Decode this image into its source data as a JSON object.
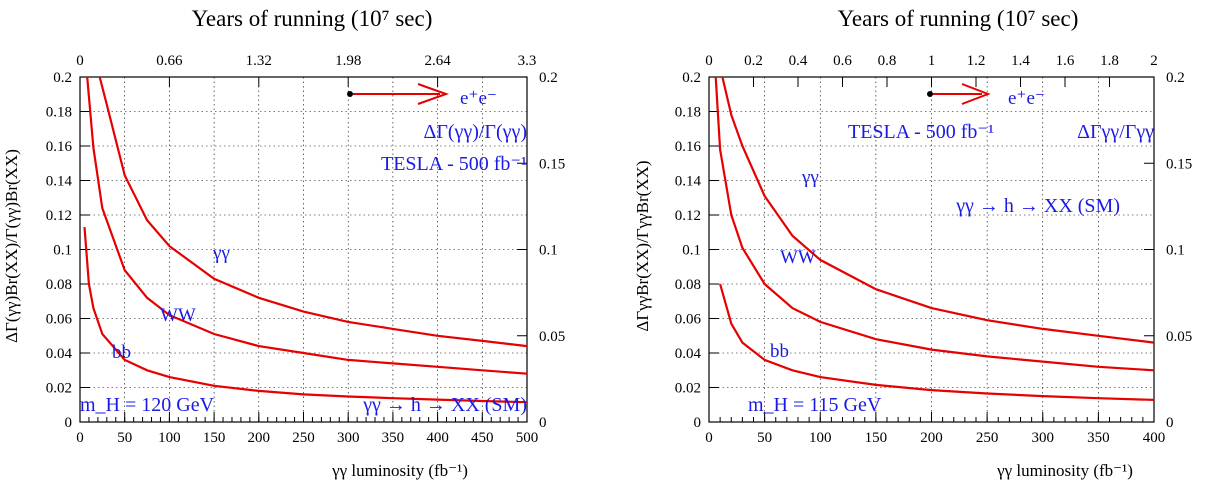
{
  "colors": {
    "curve": "#e60000",
    "annotation": "#1a1ae6",
    "axis": "#000000"
  },
  "chart_data": [
    {
      "type": "line",
      "top_title": "Years of running  (10⁷ sec)",
      "xlabel": "γγ luminosity (fb⁻¹)",
      "ylabel": "ΔΓ(γγ)Br(XX)/Γ(γγ)Br(XX)",
      "xlim": [
        0,
        500
      ],
      "ylim": [
        0,
        0.2
      ],
      "x_ticks": [
        "0",
        "50",
        "100",
        "150",
        "200",
        "250",
        "300",
        "350",
        "400",
        "450",
        "500"
      ],
      "y_ticks": [
        "0",
        "0.02",
        "0.04",
        "0.06",
        "0.08",
        "0.1",
        "0.12",
        "0.14",
        "0.16",
        "0.18",
        "0.2"
      ],
      "top_ticks": [
        "0",
        "0.66",
        "1.32",
        "1.98",
        "2.64",
        "3.3"
      ],
      "right_ticks": [
        "0",
        "0.05",
        "0.1",
        "0.15",
        "0.2"
      ],
      "grid": true,
      "series": [
        {
          "name": "γγ",
          "x": [
            22,
            30,
            50,
            75,
            100,
            150,
            200,
            250,
            300,
            350,
            400,
            450,
            500
          ],
          "y": [
            0.2,
            0.184,
            0.143,
            0.117,
            0.102,
            0.083,
            0.072,
            0.064,
            0.058,
            0.054,
            0.05,
            0.047,
            0.044
          ]
        },
        {
          "name": "WW",
          "x": [
            8,
            15,
            25,
            50,
            75,
            100,
            150,
            200,
            250,
            300,
            350,
            400,
            450,
            500
          ],
          "y": [
            0.2,
            0.159,
            0.124,
            0.088,
            0.072,
            0.062,
            0.051,
            0.044,
            0.04,
            0.036,
            0.034,
            0.032,
            0.03,
            0.028
          ]
        },
        {
          "name": "bb",
          "x": [
            5,
            10,
            15,
            25,
            50,
            75,
            100,
            150,
            200,
            250,
            300,
            350,
            400,
            450,
            500
          ],
          "y": [
            0.113,
            0.08,
            0.066,
            0.051,
            0.036,
            0.03,
            0.026,
            0.021,
            0.018,
            0.016,
            0.0148,
            0.0138,
            0.013,
            0.0122,
            0.0115
          ]
        }
      ],
      "annotations": {
        "ee": "e⁺e⁻",
        "quantity": "ΔΓ(γγ)/Γ(γγ)",
        "tesla": "TESLA - 500 fb⁻¹",
        "mass": "m_H = 120 GeV",
        "process": "γγ → h → XX (SM)",
        "label_gg": "γγ",
        "label_ww": "WW",
        "label_bb": "bb"
      }
    },
    {
      "type": "line",
      "top_title": "Years of running  (10⁷ sec)",
      "xlabel": "γγ luminosity (fb⁻¹)",
      "ylabel": "ΔΓγγBr(XX)/ΓγγBr(XX)",
      "xlim": [
        0,
        400
      ],
      "ylim": [
        0,
        0.2
      ],
      "x_ticks": [
        "0",
        "50",
        "100",
        "150",
        "200",
        "250",
        "300",
        "350",
        "400"
      ],
      "y_ticks": [
        "0",
        "0.02",
        "0.04",
        "0.06",
        "0.08",
        "0.1",
        "0.12",
        "0.14",
        "0.16",
        "0.18",
        "0.2"
      ],
      "top_ticks": [
        "0",
        "0.2",
        "0.4",
        "0.6",
        "0.8",
        "1",
        "1.2",
        "1.4",
        "1.6",
        "1.8",
        "2"
      ],
      "right_ticks": [
        "0",
        "0.05",
        "0.1",
        "0.15",
        "0.2"
      ],
      "grid": true,
      "series": [
        {
          "name": "γγ",
          "x": [
            12,
            20,
            30,
            50,
            75,
            100,
            150,
            200,
            250,
            300,
            350,
            400
          ],
          "y": [
            0.2,
            0.178,
            0.16,
            0.131,
            0.108,
            0.094,
            0.077,
            0.066,
            0.059,
            0.054,
            0.05,
            0.046
          ]
        },
        {
          "name": "WW",
          "x": [
            6,
            10,
            20,
            30,
            50,
            75,
            100,
            150,
            200,
            250,
            300,
            350,
            400
          ],
          "y": [
            0.2,
            0.158,
            0.12,
            0.101,
            0.08,
            0.066,
            0.058,
            0.048,
            0.042,
            0.038,
            0.035,
            0.032,
            0.03
          ]
        },
        {
          "name": "bb",
          "x": [
            10,
            20,
            30,
            50,
            75,
            100,
            150,
            200,
            250,
            300,
            350,
            400
          ],
          "y": [
            0.08,
            0.057,
            0.046,
            0.036,
            0.03,
            0.026,
            0.0215,
            0.0185,
            0.0165,
            0.015,
            0.0138,
            0.0128
          ]
        }
      ],
      "annotations": {
        "ee": "e⁺e⁻",
        "tesla": "TESLA - 500 fb⁻¹",
        "quantity": "ΔΓγγ/Γγγ",
        "mass": "m_H = 115 GeV",
        "process": "γγ → h → XX (SM)",
        "label_gg": "γγ",
        "label_ww": "WW",
        "label_bb": "bb"
      }
    }
  ]
}
